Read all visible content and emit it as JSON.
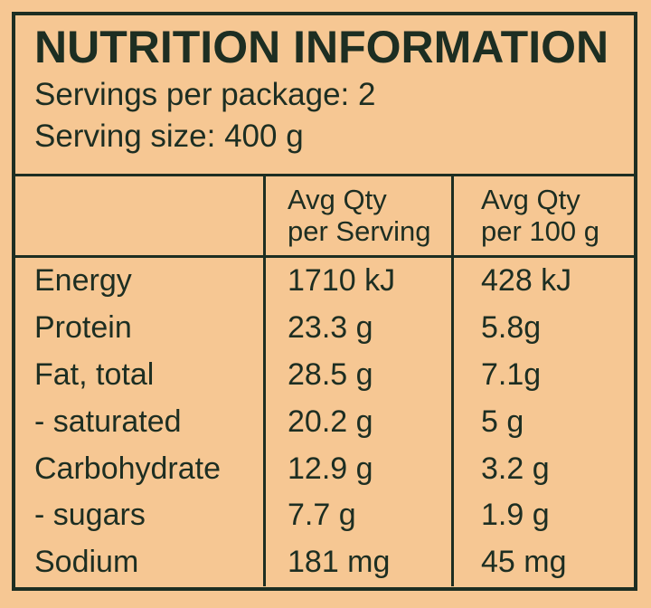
{
  "colors": {
    "background": "#F6C793",
    "ink": "#1D2E22"
  },
  "panel": {
    "title": "NUTRITION INFORMATION",
    "servings_per_package": "Servings per package: 2",
    "serving_size": "Serving size: 400 g"
  },
  "table": {
    "columns": [
      {
        "line1": "",
        "line2": ""
      },
      {
        "line1": "Avg Qty",
        "line2": "per Serving"
      },
      {
        "line1": "Avg Qty",
        "line2": "per 100 g"
      }
    ],
    "rows": [
      {
        "nutrient": "Energy",
        "per_serving": "1710 kJ",
        "per_100g": "428 kJ"
      },
      {
        "nutrient": "Protein",
        "per_serving": "23.3 g",
        "per_100g": "5.8g"
      },
      {
        "nutrient": "Fat, total",
        "per_serving": "28.5 g",
        "per_100g": "7.1g"
      },
      {
        "nutrient": "- saturated",
        "per_serving": "20.2 g",
        "per_100g": "5 g"
      },
      {
        "nutrient": "Carbohydrate",
        "per_serving": "12.9 g",
        "per_100g": "3.2 g"
      },
      {
        "nutrient": "- sugars",
        "per_serving": "7.7 g",
        "per_100g": "1.9 g"
      },
      {
        "nutrient": "Sodium",
        "per_serving": "181 mg",
        "per_100g": "45 mg"
      }
    ]
  }
}
